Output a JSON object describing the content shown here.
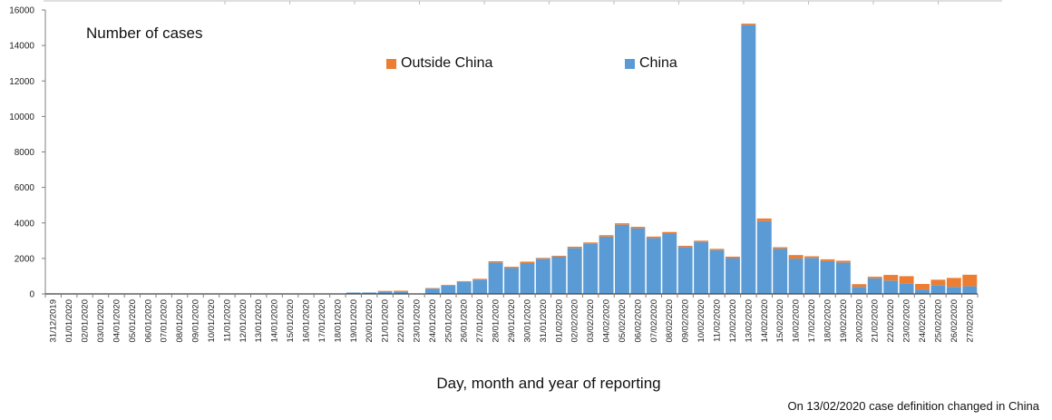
{
  "chart_data": {
    "type": "bar",
    "stacked": true,
    "ylabel": "Number of cases",
    "xlabel": "Day, month and year of reporting",
    "note": "On 13/02/2020 case definition changed in China",
    "ylim": [
      0,
      16000
    ],
    "yticks": [
      "0",
      "2000",
      "4000",
      "6000",
      "8000",
      "10000",
      "12000",
      "14000",
      "16000"
    ],
    "grid": false,
    "legend_position": "top-center",
    "categories": [
      "31/12/2019",
      "01/01/2020",
      "02/01/2020",
      "03/01/2020",
      "04/01/2020",
      "05/01/2020",
      "06/01/2020",
      "07/01/2020",
      "08/01/2020",
      "09/01/2020",
      "10/01/2020",
      "11/01/2020",
      "12/01/2020",
      "13/01/2020",
      "14/01/2020",
      "15/01/2020",
      "16/01/2020",
      "17/01/2020",
      "18/01/2020",
      "19/01/2020",
      "20/01/2020",
      "21/01/2020",
      "22/01/2020",
      "23/01/2020",
      "24/01/2020",
      "25/01/2020",
      "26/01/2020",
      "27/01/2020",
      "28/01/2020",
      "29/01/2020",
      "30/01/2020",
      "31/01/2020",
      "01/02/2020",
      "02/02/2020",
      "03/02/2020",
      "04/02/2020",
      "05/02/2020",
      "06/02/2020",
      "07/02/2020",
      "08/02/2020",
      "09/02/2020",
      "10/02/2020",
      "11/02/2020",
      "12/02/2020",
      "13/02/2020",
      "14/02/2020",
      "15/02/2020",
      "16/02/2020",
      "17/02/2020",
      "18/02/2020",
      "19/02/2020",
      "20/02/2020",
      "21/02/2020",
      "22/02/2020",
      "23/02/2020",
      "24/02/2020",
      "25/02/2020",
      "26/02/2020",
      "27/02/2020"
    ],
    "series": [
      {
        "name": "China",
        "color": "#5b9bd5",
        "values": [
          27,
          0,
          0,
          0,
          0,
          0,
          0,
          0,
          0,
          0,
          0,
          0,
          0,
          0,
          0,
          0,
          0,
          0,
          0,
          77,
          77,
          140,
          140,
          0,
          300,
          470,
          680,
          800,
          1770,
          1460,
          1740,
          1980,
          2100,
          2590,
          2830,
          3230,
          3900,
          3700,
          3150,
          3400,
          2650,
          2930,
          2470,
          2020,
          15150,
          4100,
          2550,
          1990,
          2030,
          1850,
          1770,
          400,
          880,
          750,
          600,
          250,
          500,
          400,
          430
        ]
      },
      {
        "name": "Outside China",
        "color": "#ed7d31",
        "values": [
          0,
          0,
          0,
          0,
          0,
          0,
          0,
          0,
          0,
          0,
          0,
          0,
          0,
          0,
          0,
          0,
          0,
          0,
          0,
          0,
          3,
          30,
          40,
          0,
          30,
          40,
          40,
          50,
          70,
          70,
          80,
          50,
          50,
          70,
          70,
          80,
          80,
          80,
          80,
          90,
          60,
          70,
          70,
          80,
          80,
          150,
          80,
          200,
          90,
          100,
          100,
          150,
          90,
          320,
          400,
          310,
          300,
          500,
          650
        ]
      }
    ]
  }
}
